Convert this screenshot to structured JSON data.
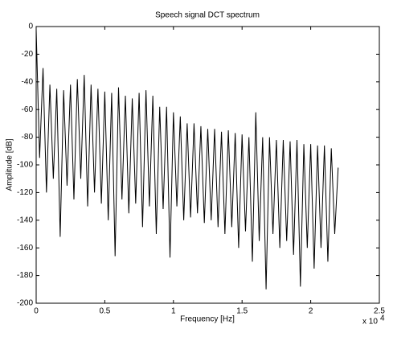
{
  "chart_data": {
    "type": "line",
    "title": "Speech signal DCT spectrum",
    "x_label": "Frequency [Hz]",
    "y_label": "Amplitude [dB]",
    "x_exponent": "x 10",
    "x_exponent_power": "4",
    "color": "#000000",
    "x": [
      0,
      250,
      500,
      750,
      1000,
      1250,
      1500,
      1750,
      2000,
      2250,
      2500,
      2750,
      3000,
      3250,
      3500,
      3750,
      4000,
      4250,
      4500,
      4750,
      5000,
      5250,
      5500,
      5750,
      6000,
      6250,
      6500,
      6750,
      7000,
      7250,
      7500,
      7750,
      8000,
      8250,
      8500,
      8750,
      9000,
      9250,
      9500,
      9750,
      10000,
      10250,
      10500,
      10750,
      11000,
      11250,
      11500,
      11750,
      12000,
      12250,
      12500,
      12750,
      13000,
      13250,
      13500,
      13750,
      14000,
      14250,
      14500,
      14750,
      15000,
      15250,
      15500,
      15750,
      16000,
      16250,
      16500,
      16750,
      17000,
      17250,
      17500,
      17750,
      18000,
      18250,
      18500,
      18750,
      19000,
      19250,
      19500,
      19750,
      20000,
      20250,
      20500,
      20750,
      21000,
      21250,
      21500,
      21750,
      22000
    ],
    "values": [
      -2,
      -95,
      -30,
      -120,
      -42,
      -110,
      -45,
      -152,
      -46,
      -115,
      -42,
      -125,
      -38,
      -110,
      -35,
      -130,
      -42,
      -120,
      -45,
      -128,
      -47,
      -140,
      -48,
      -166,
      -44,
      -125,
      -50,
      -135,
      -52,
      -128,
      -48,
      -145,
      -46,
      -130,
      -50,
      -150,
      -58,
      -132,
      -58,
      -167,
      -62,
      -130,
      -65,
      -140,
      -70,
      -138,
      -70,
      -135,
      -72,
      -142,
      -74,
      -140,
      -74,
      -145,
      -76,
      -150,
      -75,
      -145,
      -77,
      -160,
      -78,
      -148,
      -80,
      -170,
      -62,
      -155,
      -80,
      -190,
      -80,
      -150,
      -82,
      -160,
      -82,
      -155,
      -83,
      -165,
      -82,
      -188,
      -85,
      -160,
      -85,
      -175,
      -86,
      -160,
      -86,
      -170,
      -88,
      -150,
      -102
    ],
    "xlim": [
      0,
      25000
    ],
    "xticks": [
      0,
      {
        "value": 5000,
        "label": "0.5"
      },
      {
        "value": 10000,
        "label": "1"
      },
      {
        "value": 15000,
        "label": "1.5"
      },
      {
        "value": 20000,
        "label": "2"
      },
      {
        "value": 25000,
        "label": "2.5"
      }
    ],
    "ylim": [
      -200,
      0
    ],
    "yticks": [
      -200,
      -180,
      -160,
      -140,
      -120,
      -100,
      -80,
      -60,
      -40,
      -20,
      0
    ],
    "grid": false
  }
}
